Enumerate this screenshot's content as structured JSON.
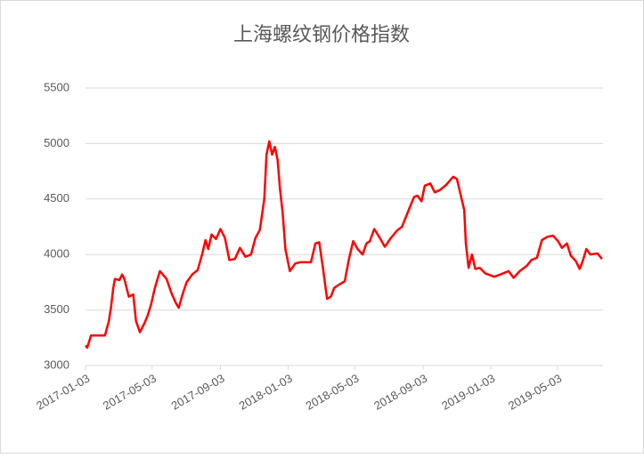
{
  "chart_data": {
    "type": "line",
    "title": "上海螺纹钢价格指数",
    "color": "#ff0000",
    "x": [
      "2017-01-03",
      "2017-01-06",
      "2017-01-13",
      "2017-02-07",
      "2017-02-14",
      "2017-02-18",
      "2017-02-22",
      "2017-02-25",
      "2017-03-05",
      "2017-03-10",
      "2017-03-14",
      "2017-03-22",
      "2017-03-30",
      "2017-04-04",
      "2017-04-11",
      "2017-04-19",
      "2017-04-25",
      "2017-05-01",
      "2017-05-08",
      "2017-05-17",
      "2017-05-29",
      "2017-06-07",
      "2017-06-15",
      "2017-06-20",
      "2017-06-26",
      "2017-07-04",
      "2017-07-14",
      "2017-07-24",
      "2017-08-01",
      "2017-08-07",
      "2017-08-12",
      "2017-08-18",
      "2017-08-26",
      "2017-09-03",
      "2017-09-11",
      "2017-09-19",
      "2017-09-29",
      "2017-10-08",
      "2017-10-18",
      "2017-10-28",
      "2017-11-05",
      "2017-11-13",
      "2017-11-21",
      "2017-11-25",
      "2017-11-30",
      "2017-12-05",
      "2017-12-10",
      "2017-12-15",
      "2017-12-19",
      "2017-12-24",
      "2017-12-29",
      "2018-01-06",
      "2018-01-16",
      "2018-01-25",
      "2018-02-13",
      "2018-02-21",
      "2018-02-28",
      "2018-03-06",
      "2018-03-14",
      "2018-03-21",
      "2018-03-27",
      "2018-04-02",
      "2018-04-15",
      "2018-04-22",
      "2018-04-30",
      "2018-05-08",
      "2018-05-17",
      "2018-05-24",
      "2018-05-30",
      "2018-06-07",
      "2018-06-17",
      "2018-06-26",
      "2018-07-07",
      "2018-07-19",
      "2018-07-27",
      "2018-08-04",
      "2018-08-12",
      "2018-08-18",
      "2018-08-24",
      "2018-08-31",
      "2018-09-06",
      "2018-09-16",
      "2018-09-24",
      "2018-10-03",
      "2018-10-15",
      "2018-10-27",
      "2018-11-03",
      "2018-11-09",
      "2018-11-16",
      "2018-11-19",
      "2018-11-24",
      "2018-11-30",
      "2018-12-06",
      "2018-12-14",
      "2018-12-24",
      "2019-01-09",
      "2019-01-20",
      "2019-02-04",
      "2019-02-13",
      "2019-02-24",
      "2019-03-09",
      "2019-03-17",
      "2019-03-27",
      "2019-04-05",
      "2019-04-15",
      "2019-04-25",
      "2019-05-04",
      "2019-05-11",
      "2019-05-20",
      "2019-05-27",
      "2019-06-05",
      "2019-06-12",
      "2019-06-18",
      "2019-06-24",
      "2019-07-01",
      "2019-07-14",
      "2019-07-22"
    ],
    "values": [
      3180,
      3160,
      3270,
      3270,
      3400,
      3530,
      3700,
      3780,
      3770,
      3820,
      3780,
      3620,
      3640,
      3400,
      3300,
      3380,
      3450,
      3550,
      3700,
      3850,
      3780,
      3650,
      3560,
      3520,
      3630,
      3750,
      3820,
      3860,
      4000,
      4130,
      4050,
      4180,
      4140,
      4230,
      4150,
      3950,
      3960,
      4060,
      3980,
      4000,
      4150,
      4220,
      4500,
      4900,
      5020,
      4900,
      4970,
      4850,
      4600,
      4380,
      4050,
      3850,
      3920,
      3930,
      3930,
      4100,
      4110,
      3900,
      3600,
      3620,
      3700,
      3720,
      3760,
      3950,
      4120,
      4050,
      4000,
      4100,
      4120,
      4230,
      4150,
      4070,
      4150,
      4220,
      4250,
      4350,
      4450,
      4520,
      4530,
      4480,
      4620,
      4640,
      4560,
      4580,
      4630,
      4700,
      4680,
      4550,
      4400,
      4100,
      3880,
      4000,
      3870,
      3880,
      3830,
      3800,
      3820,
      3850,
      3790,
      3850,
      3900,
      3950,
      3970,
      4130,
      4160,
      4170,
      4120,
      4060,
      4100,
      3990,
      3940,
      3870,
      3950,
      4050,
      4000,
      4010,
      3960
    ],
    "xlim": [
      "2017-01-03",
      "2019-07-24"
    ],
    "xticks": [
      "2017-01-03",
      "2017-05-03",
      "2017-09-03",
      "2018-01-03",
      "2018-05-03",
      "2018-09-03",
      "2019-01-03",
      "2019-05-03"
    ],
    "ylim": [
      3000,
      5500
    ],
    "yticks": [
      3000,
      3500,
      4000,
      4500,
      5000,
      5500
    ],
    "grid": true
  }
}
